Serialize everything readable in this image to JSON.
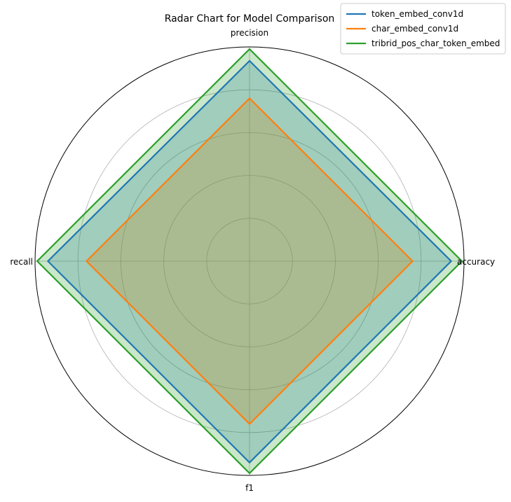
{
  "chart_data": {
    "type": "radar",
    "title": "Radar Chart for Model Comparison",
    "axes": [
      "accuracy",
      "precision",
      "recall",
      "f1"
    ],
    "rlim": [
      0,
      1
    ],
    "grid": true,
    "legend_position": "top-right",
    "series": [
      {
        "name": "token_embed_conv1d",
        "color": "#1f77b4",
        "values": [
          0.94,
          0.935,
          0.94,
          0.94
        ]
      },
      {
        "name": "char_embed_conv1d",
        "color": "#ff7f0e",
        "values": [
          0.76,
          0.76,
          0.76,
          0.76
        ]
      },
      {
        "name": "tribrid_pos_char_token_embed",
        "color": "#2ca02c",
        "values": [
          0.99,
          0.99,
          0.99,
          0.99
        ]
      }
    ]
  }
}
